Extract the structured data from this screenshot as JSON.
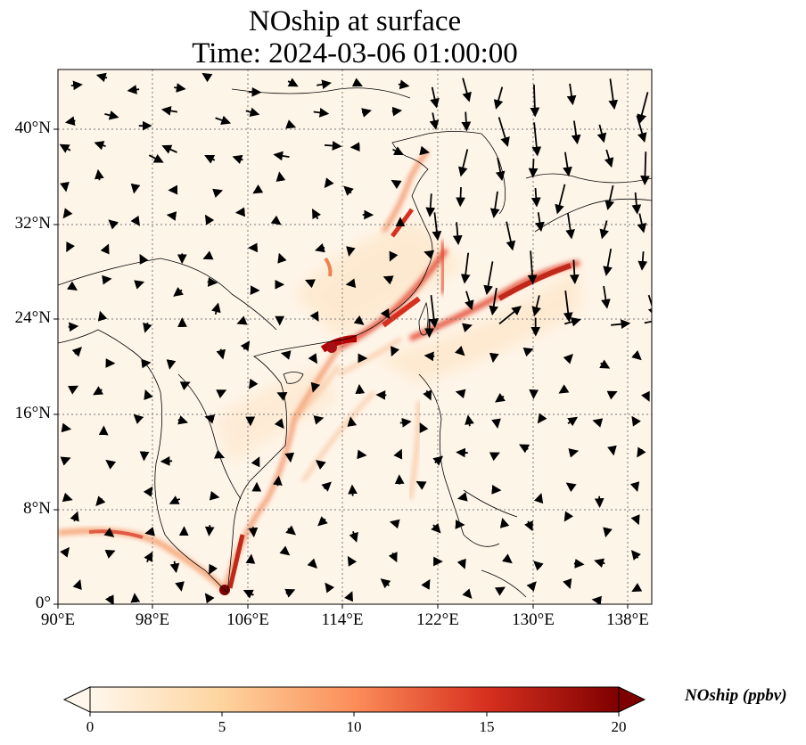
{
  "title": {
    "line1": "NOship at surface",
    "line2": "Time: 2024-03-06 01:00:00"
  },
  "axes": {
    "lat_ticks": [
      "40°N",
      "32°N",
      "24°N",
      "16°N",
      "8°N",
      "0°"
    ],
    "lon_ticks": [
      "90°E",
      "98°E",
      "106°E",
      "114°E",
      "122°E",
      "130°E",
      "138°E"
    ],
    "lat_range": [
      0,
      45
    ],
    "lon_range": [
      90,
      140
    ]
  },
  "colorbar": {
    "label": "NOship (ppbv)",
    "ticks": [
      "0",
      "5",
      "10",
      "15",
      "20"
    ],
    "range": [
      0,
      20
    ],
    "colormap": "OrRd",
    "colors": [
      "#fff7ec",
      "#fdd49e",
      "#fc8d59",
      "#d7301f",
      "#7f0000"
    ],
    "extend": "both"
  },
  "map": {
    "field": "NOship",
    "level": "surface",
    "units": "ppbv",
    "vectors": "surface wind",
    "gridlines": "dotted",
    "background_color": "#fef5e9",
    "coastline_color": "#000000"
  }
}
